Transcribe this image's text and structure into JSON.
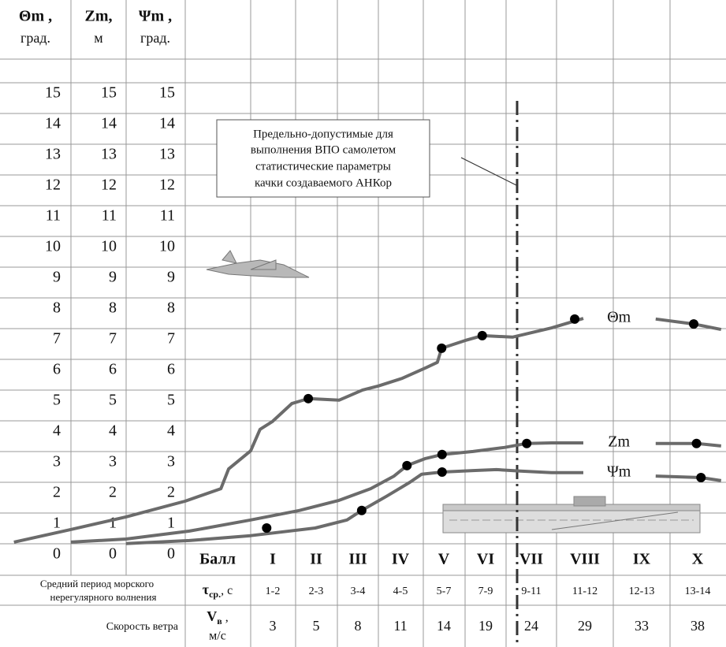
{
  "chart_data": {
    "type": "line",
    "columns": [
      {
        "label": "Θm ,",
        "unit": "град."
      },
      {
        "label": "Zm,",
        "unit": "м"
      },
      {
        "label": "Ψm ,",
        "unit": "град."
      }
    ],
    "ylim": [
      -0.67,
      16.13
    ],
    "yticks": [
      0,
      1,
      2,
      3,
      4,
      5,
      6,
      7,
      8,
      9,
      10,
      11,
      12,
      13,
      14,
      15
    ],
    "categories_label": "Балл",
    "categories": [
      "I",
      "II",
      "III",
      "IV",
      "V",
      "VI",
      "VII",
      "VIII",
      "IX",
      "X"
    ],
    "period_label": [
      "Средний период  морского",
      "нерегулярного волнения"
    ],
    "period_symbol": {
      "symbol": "τ",
      "subscript": "ср.",
      "unit": ", с"
    },
    "periods": [
      "1-2",
      "2-3",
      "3-4",
      "4-5",
      "5-7",
      "7-9",
      "9-11",
      "11-12",
      "12-13",
      "13-14"
    ],
    "wind_label": "Скорость ветра",
    "wind_symbol": {
      "symbol": "V",
      "subscript": "в",
      "unit": " ,",
      "unit2": "м/с"
    },
    "wind_speeds": [
      3,
      5,
      8,
      11,
      14,
      19,
      24,
      29,
      33,
      38
    ],
    "annotation": [
      "Предельно-допустимые для",
      "выполнения ВПО самолетом",
      "статистические параметры",
      "качки  создаваемого АНКор"
    ],
    "series": [
      {
        "name": "Θm",
        "color": "#6b6b6b",
        "x": [
          -3.69,
          -2.66,
          -1.66,
          -0.59,
          0.06,
          0.2,
          0.6,
          0.77,
          0.99,
          1.44,
          1.82,
          2.55,
          3.11,
          3.48,
          4.04,
          4.58,
          4.85,
          4.95,
          5.51,
          5.92,
          6.59,
          7.38,
          7.97,
          8.5,
          9.25,
          9.93,
          10.42
        ],
        "values": [
          0.41,
          0.82,
          1.23,
          1.74,
          2.15,
          2.79,
          3.38,
          4.08,
          4.33,
          4.92,
          5.08,
          5.03,
          5.36,
          5.49,
          5.74,
          6.08,
          6.26,
          6.72,
          6.97,
          7.13,
          7.08,
          7.38,
          7.69,
          null,
          7.67,
          7.51,
          7.33
        ],
        "points_x": [
          1.82,
          4.95,
          5.92,
          7.81,
          9.93
        ],
        "points": [
          5.08,
          6.72,
          7.13,
          7.67,
          7.51
        ]
      },
      {
        "name": "Zm",
        "color": "#6b6b6b",
        "x": [
          -2.66,
          -1.66,
          -0.51,
          0.6,
          1.62,
          2.55,
          3.3,
          3.85,
          4.15,
          4.58,
          4.96,
          5.7,
          6.41,
          6.9,
          7.38,
          7.97,
          8.5,
          9.25,
          9.98,
          10.42
        ],
        "values": [
          0.41,
          0.51,
          0.77,
          1.13,
          1.44,
          1.77,
          2.15,
          2.56,
          2.9,
          3.13,
          3.26,
          3.36,
          3.49,
          3.62,
          3.64,
          3.64,
          null,
          3.62,
          3.62,
          3.54
        ],
        "points_x": [
          4.15,
          4.96,
          6.9,
          9.98
        ],
        "points": [
          2.9,
          3.26,
          3.62,
          3.62
        ]
      },
      {
        "name": "Ψm",
        "color": "#6b6b6b",
        "x": [
          -1.66,
          -0.51,
          0.6,
          1.98,
          2.74,
          3.09,
          3.67,
          4.22,
          4.49,
          4.96,
          5.7,
          6.24,
          6.76,
          7.38,
          7.97,
          8.5,
          9.25,
          10.06,
          10.42
        ],
        "values": [
          0.36,
          0.46,
          0.62,
          0.87,
          1.13,
          1.44,
          1.9,
          2.36,
          2.62,
          2.69,
          2.74,
          2.77,
          2.72,
          2.67,
          2.67,
          null,
          2.56,
          2.51,
          2.41
        ],
        "points_x": [
          0.89,
          3.09,
          4.96,
          10.06
        ],
        "points": [
          0.87,
          1.44,
          2.69,
          2.51
        ]
      }
    ]
  }
}
